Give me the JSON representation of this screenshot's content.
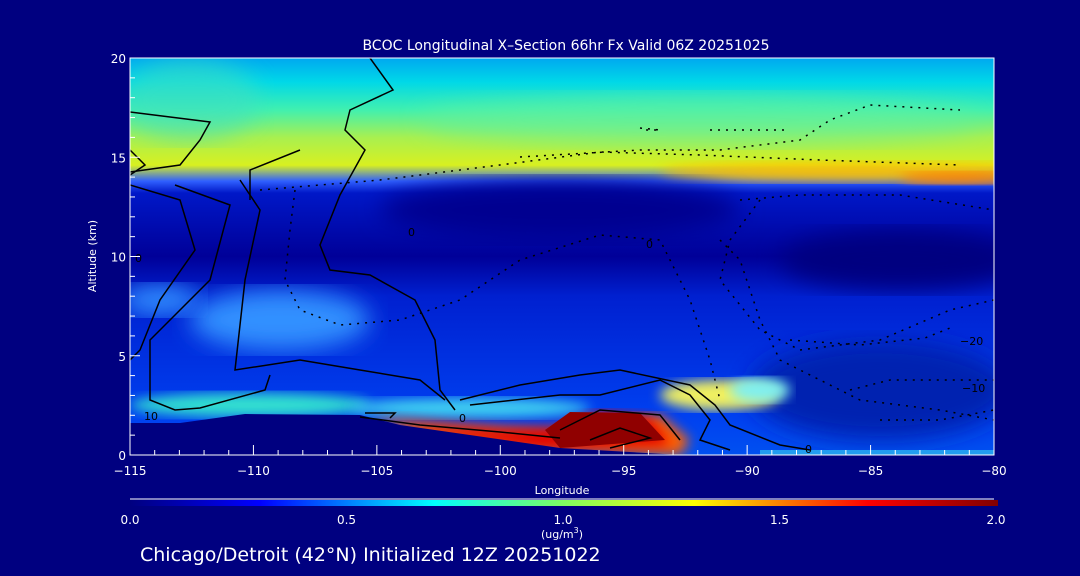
{
  "chart_data": {
    "type": "heatmap",
    "title": "BCOC Longitudinal X–Section 66hr  Fx Valid 06Z 20251025",
    "xlabel": "Longitude",
    "ylabel": "Altitude (km)",
    "xlim": [
      -115,
      -80
    ],
    "ylim": [
      0,
      20
    ],
    "xticks": [
      -115,
      -110,
      -105,
      -100,
      -95,
      -90,
      -85,
      -80
    ],
    "xtick_labels": [
      "−115",
      "−110",
      "−105",
      "−100",
      "−95",
      "−90",
      "−85",
      "−80"
    ],
    "yticks": [
      0,
      5,
      10,
      15,
      20
    ],
    "ytick_labels": [
      "0",
      "5",
      "10",
      "15",
      "20"
    ],
    "colorbar": {
      "range": [
        0.0,
        2.0
      ],
      "tick_labels": [
        "0.0",
        "0.5",
        "1.0",
        "1.5",
        "2.0"
      ],
      "unit_label": "(ug/m",
      "unit_sup": "3",
      "unit_close": ")"
    },
    "contour_labels": [
      "10",
      "0",
      "0",
      "0",
      "0",
      "0",
      "−20",
      "−10"
    ],
    "subtitle": "Chicago/Detroit (42°N) Initialized 12Z 20251022"
  }
}
